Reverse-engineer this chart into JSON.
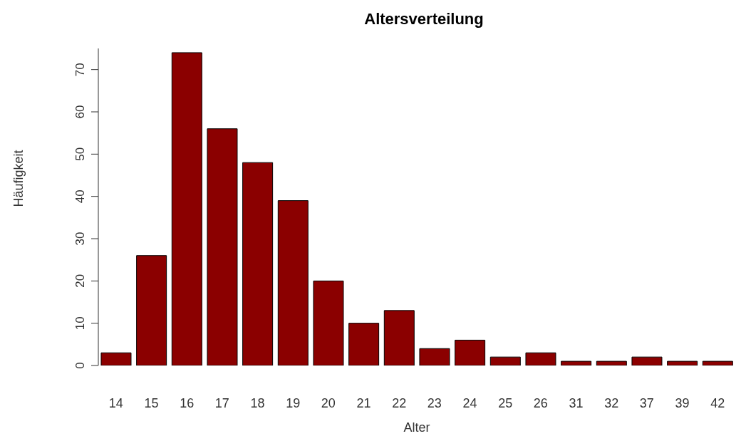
{
  "chart_data": {
    "type": "bar",
    "title": "Altersverteilung",
    "xlabel": "Alter",
    "ylabel": "Häufigkeit",
    "categories": [
      "14",
      "15",
      "16",
      "17",
      "18",
      "19",
      "20",
      "21",
      "22",
      "23",
      "24",
      "25",
      "26",
      "31",
      "32",
      "37",
      "39",
      "42"
    ],
    "values": [
      3,
      26,
      74,
      56,
      48,
      39,
      20,
      10,
      13,
      4,
      6,
      2,
      3,
      1,
      1,
      2,
      1,
      1
    ],
    "color": "#8b0000",
    "ylim": [
      0,
      75
    ],
    "yticks": [
      0,
      10,
      20,
      30,
      40,
      50,
      60,
      70
    ],
    "grid": false,
    "legend": false
  }
}
